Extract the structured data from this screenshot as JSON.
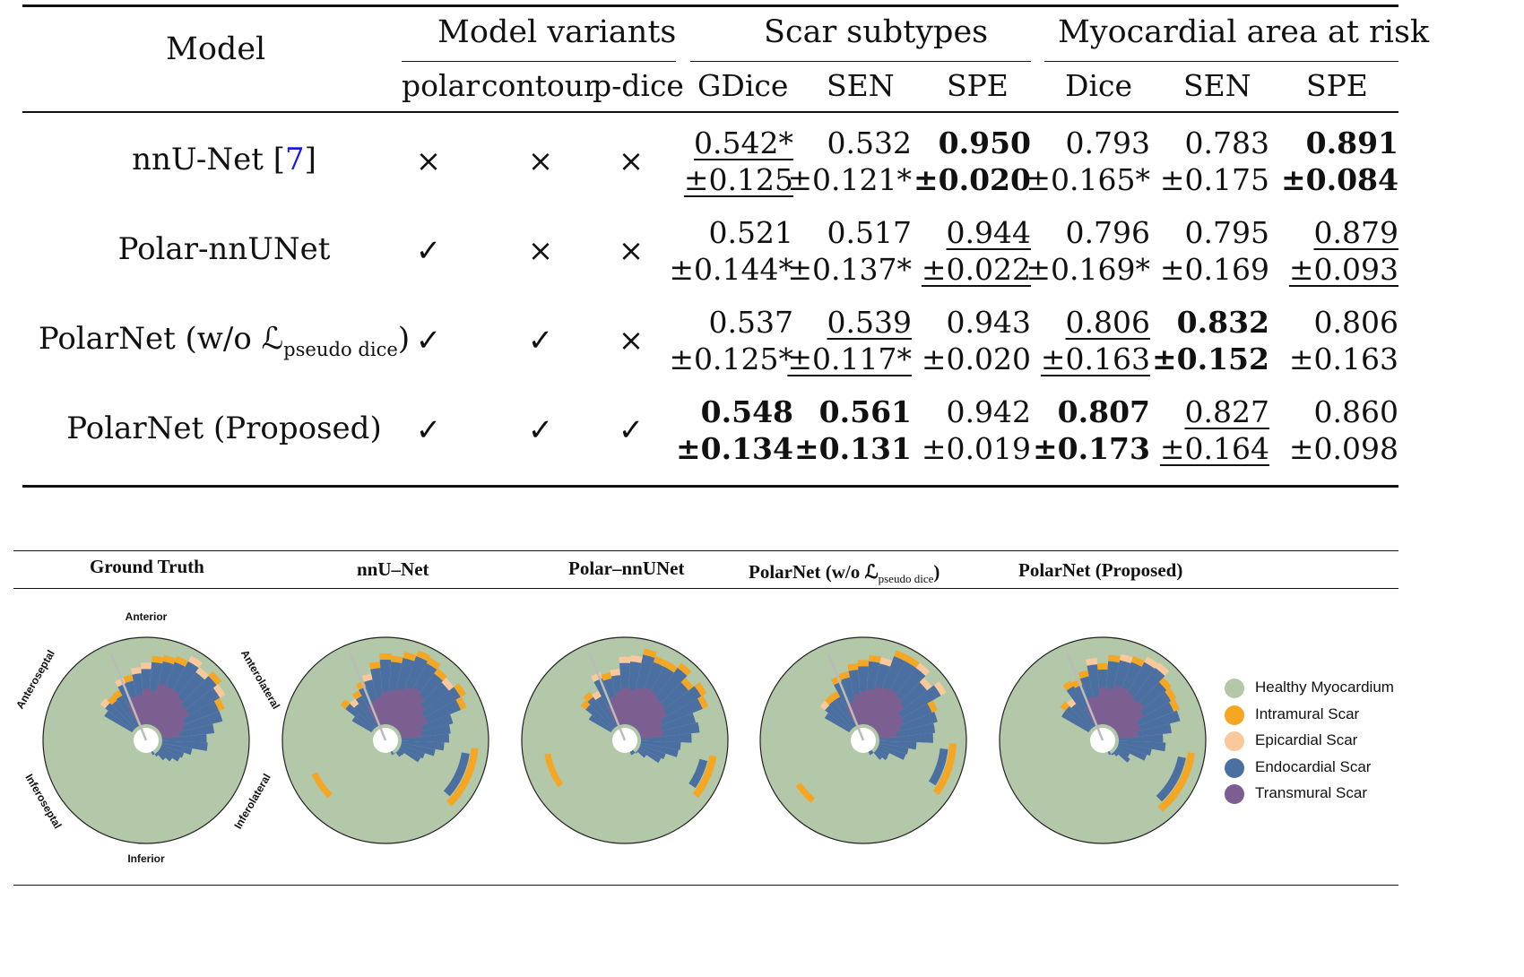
{
  "table": {
    "headers": {
      "model": "Model",
      "variants": "Model variants",
      "scar": "Scar subtypes",
      "risk": "Myocardial area at risk"
    },
    "subheaders": [
      "polar",
      "contour",
      "p-dice",
      "GDice",
      "SEN",
      "SPE",
      "Dice",
      "SEN",
      "SPE"
    ],
    "rows": [
      {
        "model_main": "nnU-Net [",
        "model_cite": "7",
        "model_tail": "]",
        "marks": [
          "×",
          "×",
          "×"
        ],
        "vals": [
          {
            "m": "0.542*",
            "s": "±0.125",
            "style": "u"
          },
          {
            "m": "0.532",
            "s": "±0.121*",
            "style": ""
          },
          {
            "m": "0.950",
            "s": "±0.020",
            "style": "b"
          },
          {
            "m": "0.793",
            "s": "±0.165*",
            "style": ""
          },
          {
            "m": "0.783",
            "s": "±0.175",
            "style": ""
          },
          {
            "m": "0.891",
            "s": "±0.084",
            "style": "b"
          }
        ]
      },
      {
        "model_main": "Polar-nnUNet",
        "marks": [
          "✓",
          "×",
          "×"
        ],
        "vals": [
          {
            "m": "0.521",
            "s": "±0.144*",
            "style": ""
          },
          {
            "m": "0.517",
            "s": "±0.137*",
            "style": ""
          },
          {
            "m": "0.944",
            "s": "±0.022",
            "style": "u"
          },
          {
            "m": "0.796",
            "s": "±0.169*",
            "style": ""
          },
          {
            "m": "0.795",
            "s": "±0.169",
            "style": ""
          },
          {
            "m": "0.879",
            "s": "±0.093",
            "style": "u"
          }
        ]
      },
      {
        "model_main": "PolarNet (w/o ℒ",
        "model_sub": "pseudo dice",
        "model_tail": ")",
        "marks": [
          "✓",
          "✓",
          "×"
        ],
        "vals": [
          {
            "m": "0.537",
            "s": "±0.125*",
            "style": ""
          },
          {
            "m": "0.539",
            "s": "±0.117*",
            "style": "u"
          },
          {
            "m": "0.943",
            "s": "±0.020",
            "style": ""
          },
          {
            "m": "0.806",
            "s": "±0.163",
            "style": "u"
          },
          {
            "m": "0.832",
            "s": "±0.152",
            "style": "b"
          },
          {
            "m": "0.806",
            "s": "±0.163",
            "style": ""
          }
        ]
      },
      {
        "model_main": "PolarNet (Proposed)",
        "marks": [
          "✓",
          "✓",
          "✓"
        ],
        "vals": [
          {
            "m": "0.548",
            "s": "±0.134",
            "style": "b"
          },
          {
            "m": "0.561",
            "s": "±0.131",
            "style": "b"
          },
          {
            "m": "0.942",
            "s": "±0.019",
            "style": ""
          },
          {
            "m": "0.807",
            "s": "±0.173",
            "style": "b"
          },
          {
            "m": "0.827",
            "s": "±0.164",
            "style": "u"
          },
          {
            "m": "0.860",
            "s": "±0.098",
            "style": ""
          }
        ]
      }
    ]
  },
  "figure": {
    "panel_titles": [
      "Ground Truth",
      "nnU–Net",
      "Polar–nnUNet",
      "PolarNet (w/o ℒ",
      "PolarNet (Proposed)"
    ],
    "panel3_sub": "pseudo dice",
    "panel3_tail": ")",
    "segment_labels": {
      "anterior": "Anterior",
      "anteroseptal": "Anteroseptal",
      "anterolateral": "Anterolateral",
      "inferoseptal": "Inferoseptal",
      "inferolateral": "Inferolateral",
      "inferior": "Inferior"
    },
    "legend": [
      {
        "label": "Healthy Myocardium",
        "color": "#b2c8a9"
      },
      {
        "label": "Intramural Scar",
        "color": "#f5a623"
      },
      {
        "label": "Epicardial Scar",
        "color": "#f9c99b"
      },
      {
        "label": "Endocardial Scar",
        "color": "#4a6fa0"
      },
      {
        "label": "Transmural Scar",
        "color": "#7c5e91"
      }
    ]
  }
}
